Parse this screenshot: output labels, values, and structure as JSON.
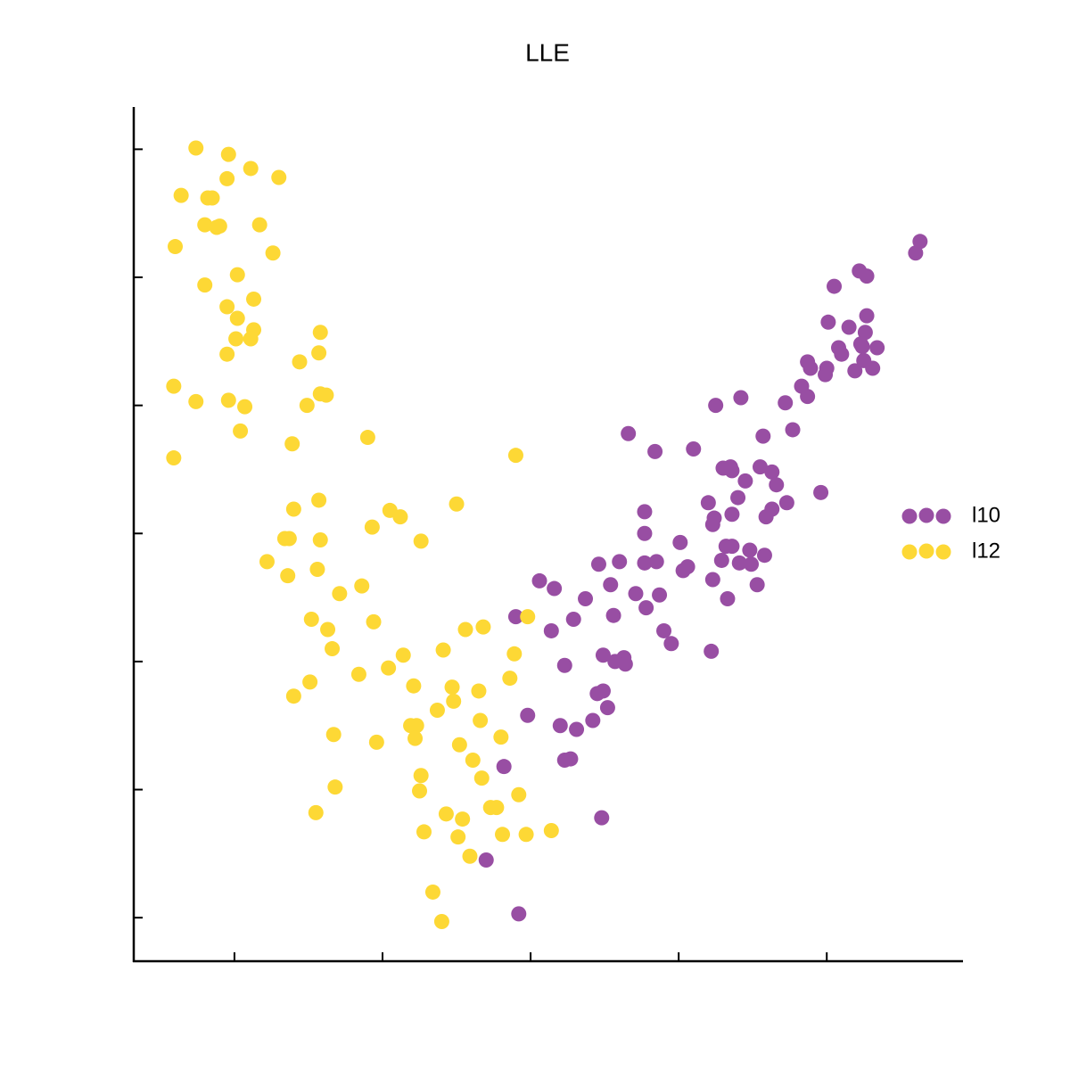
{
  "chart_data": {
    "type": "scatter",
    "title": "LLE",
    "xlim": [
      0.32,
      5.92
    ],
    "ylim": [
      -0.34,
      6.33
    ],
    "xticks": [
      1,
      2,
      3,
      4,
      5
    ],
    "yticks": [
      0,
      1,
      2,
      3,
      4,
      5,
      6
    ],
    "series": [
      {
        "name": "l10",
        "color": "#984ea3",
        "x": [
          5.63,
          5.6,
          5.22,
          5.27,
          5.05,
          5.27,
          5.01,
          5.15,
          5.26,
          5.08,
          5.1,
          5.23,
          5.34,
          5.24,
          4.87,
          4.89,
          5.0,
          4.99,
          5.19,
          5.31,
          5.25,
          4.83,
          4.87,
          4.42,
          4.25,
          4.72,
          3.66,
          4.77,
          4.57,
          4.1,
          3.84,
          4.3,
          4.35,
          4.36,
          4.55,
          4.63,
          4.45,
          4.66,
          4.96,
          4.4,
          4.2,
          4.73,
          4.63,
          4.59,
          3.77,
          4.36,
          4.24,
          4.23,
          4.01,
          4.32,
          4.36,
          3.77,
          4.48,
          4.58,
          4.29,
          4.41,
          4.49,
          3.46,
          3.6,
          3.77,
          3.85,
          4.06,
          4.03,
          3.06,
          3.16,
          3.54,
          4.23,
          4.53,
          3.37,
          3.71,
          3.87,
          4.33,
          3.29,
          3.56,
          3.78,
          2.9,
          3.14,
          3.9,
          3.95,
          4.22,
          3.49,
          3.63,
          3.57,
          3.64,
          3.23,
          3.45,
          3.49,
          3.52,
          2.98,
          3.42,
          3.2,
          3.31,
          3.23,
          3.27,
          2.82,
          3.48,
          2.7,
          2.92
        ],
        "values": [
          5.28,
          5.19,
          5.05,
          5.01,
          4.93,
          4.7,
          4.65,
          4.61,
          4.57,
          4.45,
          4.4,
          4.48,
          4.45,
          4.46,
          4.34,
          4.29,
          4.29,
          4.24,
          4.27,
          4.29,
          4.35,
          4.15,
          4.07,
          4.06,
          4.0,
          4.02,
          3.78,
          3.81,
          3.76,
          3.66,
          3.64,
          3.51,
          3.52,
          3.49,
          3.52,
          3.48,
          3.41,
          3.38,
          3.32,
          3.28,
          3.24,
          3.24,
          3.19,
          3.13,
          3.17,
          3.15,
          3.12,
          3.07,
          2.93,
          2.9,
          2.9,
          3.0,
          2.87,
          2.83,
          2.79,
          2.77,
          2.76,
          2.76,
          2.78,
          2.77,
          2.78,
          2.74,
          2.71,
          2.63,
          2.57,
          2.6,
          2.64,
          2.6,
          2.49,
          2.53,
          2.52,
          2.49,
          2.33,
          2.36,
          2.42,
          2.35,
          2.24,
          2.24,
          2.14,
          2.08,
          2.05,
          2.03,
          2.0,
          1.98,
          1.97,
          1.75,
          1.77,
          1.64,
          1.58,
          1.54,
          1.5,
          1.47,
          1.23,
          1.24,
          1.18,
          0.78,
          0.45,
          0.03
        ]
      },
      {
        "name": "l12",
        "color": "#fdd835",
        "x": [
          0.74,
          0.96,
          1.11,
          1.3,
          0.95,
          0.64,
          0.82,
          0.85,
          0.8,
          0.88,
          0.9,
          1.17,
          0.6,
          1.26,
          1.02,
          0.8,
          1.13,
          0.95,
          1.02,
          1.13,
          1.11,
          1.01,
          1.58,
          1.57,
          0.95,
          1.44,
          0.59,
          0.74,
          0.96,
          1.07,
          1.58,
          1.62,
          1.49,
          1.04,
          1.39,
          1.9,
          2.9,
          0.59,
          1.57,
          1.4,
          2.5,
          2.05,
          2.12,
          1.93,
          1.34,
          1.37,
          1.58,
          2.26,
          1.22,
          1.56,
          1.36,
          1.86,
          1.71,
          2.98,
          1.52,
          1.63,
          1.94,
          2.56,
          2.68,
          1.66,
          2.41,
          2.14,
          2.89,
          2.04,
          1.84,
          1.51,
          2.86,
          2.21,
          2.47,
          2.65,
          1.4,
          2.48,
          2.37,
          2.19,
          2.23,
          2.66,
          2.22,
          1.67,
          1.96,
          2.8,
          2.52,
          2.61,
          2.26,
          2.67,
          1.68,
          2.25,
          2.92,
          2.73,
          2.77,
          1.55,
          2.43,
          2.54,
          2.28,
          2.51,
          2.81,
          2.97,
          3.14,
          2.59,
          2.34,
          2.4
        ],
        "values": [
          6.01,
          5.96,
          5.85,
          5.78,
          5.77,
          5.64,
          5.62,
          5.62,
          5.41,
          5.39,
          5.4,
          5.41,
          5.24,
          5.19,
          5.02,
          4.94,
          4.83,
          4.77,
          4.68,
          4.59,
          4.52,
          4.52,
          4.57,
          4.41,
          4.4,
          4.34,
          4.15,
          4.03,
          4.04,
          3.99,
          4.09,
          4.08,
          4.0,
          3.8,
          3.7,
          3.75,
          3.61,
          3.59,
          3.26,
          3.19,
          3.23,
          3.18,
          3.13,
          3.05,
          2.96,
          2.96,
          2.95,
          2.94,
          2.78,
          2.72,
          2.67,
          2.59,
          2.53,
          2.35,
          2.33,
          2.25,
          2.31,
          2.25,
          2.27,
          2.1,
          2.09,
          2.05,
          2.06,
          1.95,
          1.9,
          1.84,
          1.87,
          1.81,
          1.8,
          1.77,
          1.73,
          1.69,
          1.62,
          1.5,
          1.5,
          1.54,
          1.4,
          1.43,
          1.37,
          1.41,
          1.35,
          1.23,
          1.11,
          1.09,
          1.02,
          0.99,
          0.96,
          0.86,
          0.86,
          0.82,
          0.81,
          0.77,
          0.67,
          0.63,
          0.65,
          0.65,
          0.68,
          0.48,
          0.2,
          -0.03
        ]
      }
    ],
    "legend": "right"
  }
}
